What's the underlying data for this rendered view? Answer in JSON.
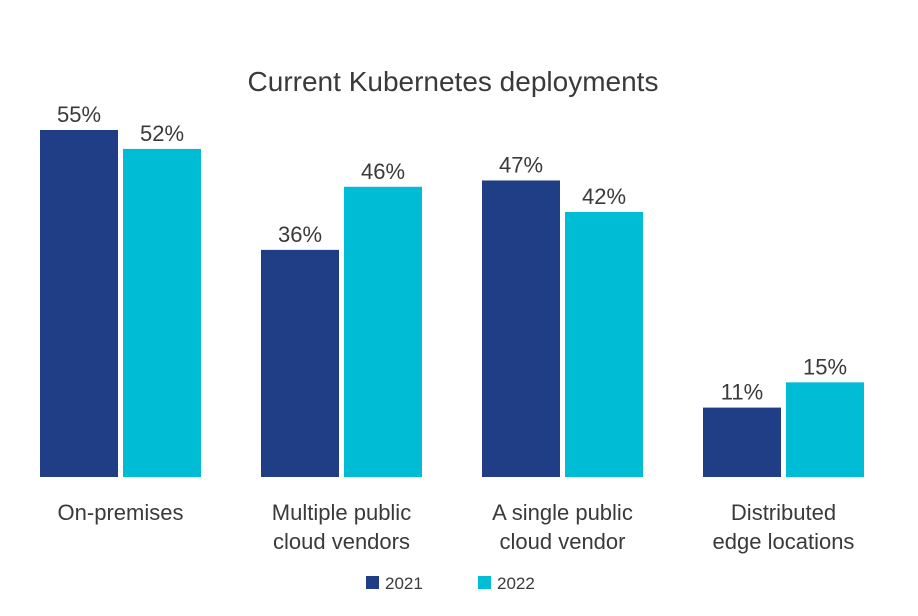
{
  "chart_data": {
    "type": "bar",
    "title": "Current Kubernetes deployments",
    "categories": [
      [
        "On-premises"
      ],
      [
        "Multiple public",
        "cloud vendors"
      ],
      [
        "A single public",
        "cloud vendor"
      ],
      [
        "Distributed",
        "edge locations"
      ]
    ],
    "series": [
      {
        "name": "2021",
        "color": "#1f3e85",
        "values": [
          55,
          36,
          47,
          11
        ],
        "labels": [
          "55%",
          "36%",
          "47%",
          "11%"
        ]
      },
      {
        "name": "2022",
        "color": "#00bcd4",
        "values": [
          52,
          46,
          42,
          15
        ],
        "labels": [
          "52%",
          "46%",
          "42%",
          "15%"
        ]
      }
    ],
    "ylim": [
      0,
      55
    ],
    "grid": false,
    "legend_position": "bottom-center"
  }
}
